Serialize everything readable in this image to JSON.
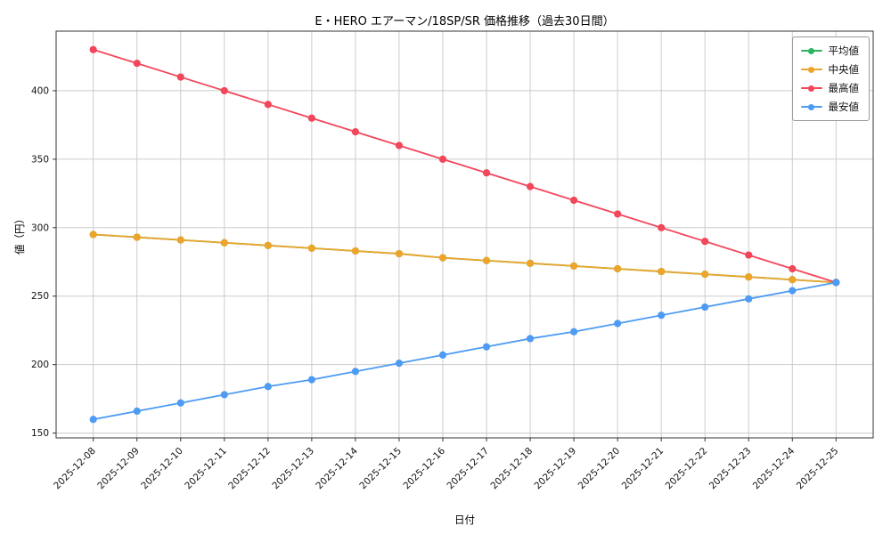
{
  "title": "E・HERO エアーマン/18SP/SR 価格推移（過去30日間）",
  "xlabel": "日付",
  "ylabel": "値（円）",
  "chart_data": {
    "type": "line",
    "x": [
      "2025-12-08",
      "2025-12-09",
      "2025-12-10",
      "2025-12-11",
      "2025-12-12",
      "2025-12-13",
      "2025-12-14",
      "2025-12-15",
      "2025-12-16",
      "2025-12-17",
      "2025-12-18",
      "2025-12-19",
      "2025-12-20",
      "2025-12-21",
      "2025-12-22",
      "2025-12-23",
      "2025-12-24",
      "2025-12-25"
    ],
    "series": [
      {
        "name": "平均値",
        "color": "#2db45e",
        "values": [
          295,
          293,
          291,
          289,
          287,
          285,
          283,
          281,
          278,
          276,
          274,
          272,
          270,
          268,
          266,
          264,
          262,
          260
        ]
      },
      {
        "name": "中央値",
        "color": "#eda42b",
        "values": [
          295,
          293,
          291,
          289,
          287,
          285,
          283,
          281,
          278,
          276,
          274,
          272,
          270,
          268,
          266,
          264,
          262,
          260
        ]
      },
      {
        "name": "最高値",
        "color": "#f2465a",
        "values": [
          430,
          420,
          410,
          400,
          390,
          380,
          370,
          360,
          350,
          340,
          330,
          320,
          310,
          300,
          290,
          280,
          270,
          260
        ]
      },
      {
        "name": "最安値",
        "color": "#4d9bf2",
        "values": [
          160,
          166,
          172,
          178,
          184,
          189,
          195,
          201,
          207,
          213,
          219,
          224,
          230,
          236,
          242,
          248,
          254,
          260
        ]
      }
    ],
    "ylim": [
      146.5,
      443.5
    ],
    "yticks": [
      150,
      200,
      250,
      300,
      350,
      400
    ],
    "grid": true,
    "legend_position": "upper right",
    "note_colors": {
      "grid": "#cccccc",
      "spine": "#333333",
      "background": "#ffffff"
    }
  }
}
